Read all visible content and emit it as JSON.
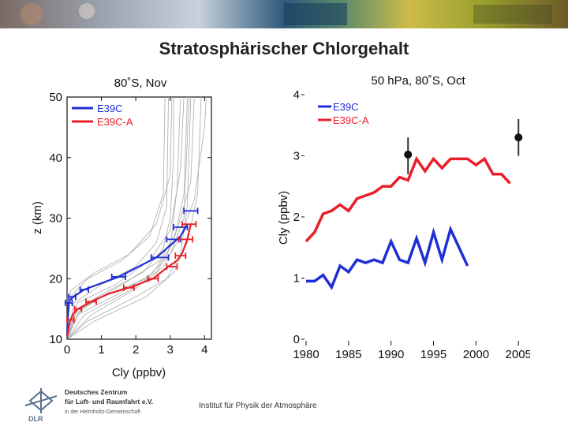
{
  "slide": {
    "title": "Stratosphärischer Chlorgehalt",
    "footer": "Institut für Physik der Atmosphäre"
  },
  "logo": {
    "abbrev": "DLR",
    "line1": "Deutsches Zentrum",
    "line2": "für Luft- und Raumfahrt e.V.",
    "line3": "in der Helmholtz-Gemeinschaft"
  },
  "colors": {
    "blue": "#1f2fd6",
    "red": "#e8202a",
    "gray": "#aaaaaa",
    "black": "#111111"
  },
  "chart_data": [
    {
      "id": "profile",
      "type": "line",
      "title": "80˚S, Nov",
      "xlabel": "Cly (ppbv)",
      "ylabel": "z (km)",
      "xlim": [
        0,
        4.2
      ],
      "ylim": [
        10,
        50
      ],
      "xticks": [
        0,
        1,
        2,
        3,
        4
      ],
      "yticks": [
        10,
        20,
        30,
        40,
        50
      ],
      "legend": [
        "E39C",
        "E39C-A"
      ],
      "series": [
        {
          "name": "E39C",
          "color": "blue",
          "points": [
            [
              0.0,
              10.5
            ],
            [
              0.02,
              14
            ],
            [
              0.05,
              16.2
            ],
            [
              0.18,
              17
            ],
            [
              0.5,
              18.2
            ],
            [
              1.5,
              20.3
            ],
            [
              2.6,
              23.5
            ],
            [
              3.0,
              25.5
            ],
            [
              3.3,
              27
            ],
            [
              3.5,
              29
            ]
          ]
        },
        {
          "name": "E39C-A",
          "color": "red",
          "points": [
            [
              0.0,
              10.5
            ],
            [
              0.05,
              12
            ],
            [
              0.1,
              13.2
            ],
            [
              0.18,
              14.2
            ],
            [
              0.32,
              15
            ],
            [
              0.7,
              16.2
            ],
            [
              1.2,
              17.5
            ],
            [
              1.8,
              18.5
            ],
            [
              2.5,
              20
            ],
            [
              2.9,
              21.8
            ],
            [
              3.2,
              23
            ],
            [
              3.35,
              24.2
            ],
            [
              3.5,
              26.5
            ],
            [
              3.6,
              29
            ]
          ]
        }
      ],
      "errorbars": [
        {
          "series": "E39C",
          "points": [
            [
              0.05,
              16.0,
              0.1
            ],
            [
              0.15,
              17.0,
              0.1
            ],
            [
              0.5,
              18.2,
              0.12
            ],
            [
              1.5,
              20.3,
              0.2
            ],
            [
              2.7,
              23.5,
              0.25
            ],
            [
              3.1,
              26.5,
              0.2
            ],
            [
              3.3,
              28.5,
              0.2
            ],
            [
              3.6,
              31.2,
              0.2
            ]
          ]
        },
        {
          "series": "E39C-A",
          "points": [
            [
              0.1,
              13.2,
              0.1
            ],
            [
              0.32,
              15.0,
              0.1
            ],
            [
              0.7,
              16.2,
              0.15
            ],
            [
              1.8,
              18.5,
              0.15
            ],
            [
              2.5,
              20.0,
              0.15
            ],
            [
              3.05,
              22.0,
              0.15
            ],
            [
              3.3,
              23.8,
              0.15
            ],
            [
              3.45,
              26.5,
              0.2
            ],
            [
              3.55,
              29.0,
              0.2
            ]
          ]
        }
      ],
      "gray_series": [
        [
          [
            0.0,
            10
          ],
          [
            0.3,
            15
          ],
          [
            1.2,
            18
          ],
          [
            2.2,
            21
          ],
          [
            2.8,
            25
          ],
          [
            3.0,
            30
          ],
          [
            3.1,
            40
          ],
          [
            3.1,
            50
          ]
        ],
        [
          [
            0.0,
            10
          ],
          [
            0.5,
            14
          ],
          [
            1.8,
            18
          ],
          [
            2.6,
            21
          ],
          [
            3.0,
            25
          ],
          [
            3.2,
            35
          ],
          [
            3.3,
            50
          ]
        ],
        [
          [
            0.0,
            10
          ],
          [
            0.2,
            16
          ],
          [
            1.0,
            19
          ],
          [
            2.0,
            22
          ],
          [
            2.6,
            26
          ],
          [
            2.9,
            32
          ],
          [
            2.95,
            50
          ]
        ],
        [
          [
            0.0,
            10
          ],
          [
            0.6,
            13
          ],
          [
            2.0,
            17
          ],
          [
            2.9,
            20
          ],
          [
            3.3,
            24
          ],
          [
            3.5,
            32
          ],
          [
            3.6,
            50
          ]
        ],
        [
          [
            0.0,
            10
          ],
          [
            0.1,
            17
          ],
          [
            0.6,
            20
          ],
          [
            1.6,
            23
          ],
          [
            2.4,
            27
          ],
          [
            2.8,
            34
          ],
          [
            2.85,
            50
          ]
        ],
        [
          [
            0.0,
            10
          ],
          [
            0.8,
            13
          ],
          [
            2.3,
            17
          ],
          [
            3.1,
            21
          ],
          [
            3.5,
            26
          ],
          [
            3.8,
            34
          ],
          [
            3.9,
            50
          ]
        ],
        [
          [
            0.0,
            10
          ],
          [
            0.3,
            16
          ],
          [
            1.4,
            19
          ],
          [
            2.4,
            23
          ],
          [
            3.0,
            28
          ],
          [
            3.3,
            38
          ],
          [
            3.4,
            50
          ]
        ],
        [
          [
            0.0,
            10
          ],
          [
            0.4,
            15
          ],
          [
            1.6,
            19
          ],
          [
            2.7,
            23
          ],
          [
            3.2,
            28
          ],
          [
            3.6,
            36
          ],
          [
            3.7,
            50
          ]
        ],
        [
          [
            0.0,
            10
          ],
          [
            0.2,
            14
          ],
          [
            1.0,
            17
          ],
          [
            2.3,
            20
          ],
          [
            3.0,
            24
          ],
          [
            3.4,
            30
          ],
          [
            3.55,
            50
          ]
        ],
        [
          [
            0.0,
            10
          ],
          [
            0.1,
            18
          ],
          [
            0.8,
            21
          ],
          [
            1.8,
            24
          ],
          [
            2.6,
            29
          ],
          [
            3.0,
            37
          ],
          [
            3.05,
            50
          ]
        ],
        [
          [
            0.0,
            10
          ],
          [
            0.7,
            14
          ],
          [
            1.9,
            18
          ],
          [
            2.8,
            22
          ],
          [
            3.3,
            27
          ],
          [
            3.7,
            33
          ],
          [
            4.0,
            45
          ],
          [
            4.05,
            50
          ]
        ],
        [
          [
            0.0,
            10
          ],
          [
            0.3,
            14
          ],
          [
            1.5,
            17.5
          ],
          [
            2.5,
            21
          ],
          [
            3.1,
            26
          ],
          [
            3.4,
            34
          ],
          [
            3.5,
            50
          ]
        ]
      ]
    },
    {
      "id": "timeseries",
      "type": "line",
      "title": "50 hPa, 80˚S, Oct",
      "xlabel": "",
      "ylabel": "Cly (ppbv)",
      "xlim": [
        1980,
        2006
      ],
      "ylim": [
        0,
        4
      ],
      "xticks": [
        1980,
        1985,
        1990,
        1995,
        2000,
        2005
      ],
      "yticks": [
        0,
        1,
        2,
        3,
        4
      ],
      "legend": [
        "E39C",
        "E39C-A"
      ],
      "series": [
        {
          "name": "E39C",
          "color": "blue",
          "x": [
            1980,
            1981,
            1982,
            1983,
            1984,
            1985,
            1986,
            1987,
            1988,
            1989,
            1990,
            1991,
            1992,
            1993,
            1994,
            1995,
            1996,
            1997,
            1998,
            1999
          ],
          "y": [
            0.95,
            0.95,
            1.05,
            0.85,
            1.2,
            1.1,
            1.3,
            1.25,
            1.3,
            1.25,
            1.6,
            1.3,
            1.25,
            1.65,
            1.25,
            1.75,
            1.3,
            1.8,
            1.5,
            1.2
          ]
        },
        {
          "name": "E39C-A",
          "color": "red",
          "x": [
            1980,
            1981,
            1982,
            1983,
            1984,
            1985,
            1986,
            1987,
            1988,
            1989,
            1990,
            1991,
            1992,
            1993,
            1994,
            1995,
            1996,
            1997,
            1998,
            1999,
            2000,
            2001,
            2002,
            2003,
            2004
          ],
          "y": [
            1.6,
            1.75,
            2.05,
            2.1,
            2.2,
            2.1,
            2.3,
            2.35,
            2.4,
            2.5,
            2.5,
            2.65,
            2.6,
            2.95,
            2.75,
            2.95,
            2.8,
            2.95,
            2.95,
            2.95,
            2.85,
            2.95,
            2.7,
            2.7,
            2.55
          ]
        }
      ],
      "observations": [
        {
          "x": 1992,
          "y": 3.02,
          "low": 2.7,
          "high": 3.3
        },
        {
          "x": 2005,
          "y": 3.3,
          "low": 3.0,
          "high": 3.6
        }
      ]
    }
  ]
}
